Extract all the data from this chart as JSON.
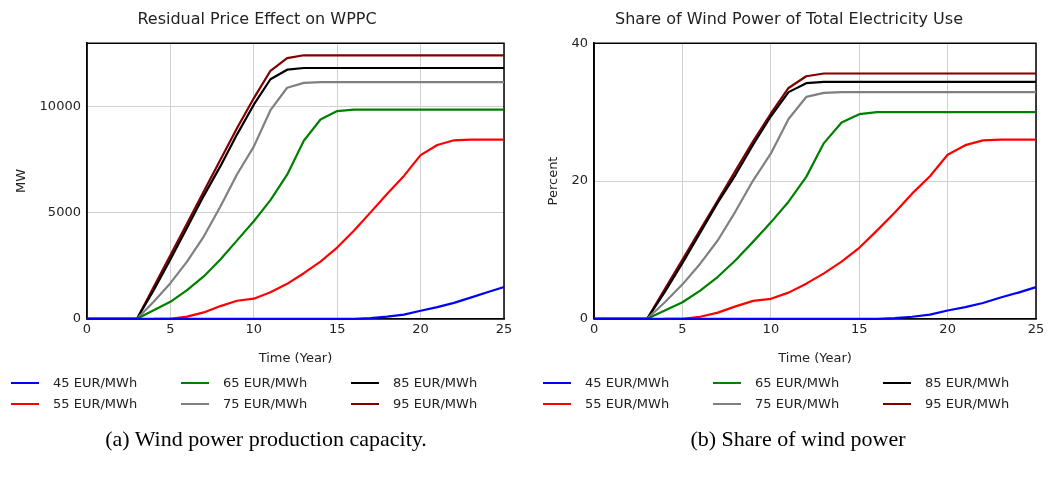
{
  "chart_data": [
    {
      "type": "line",
      "title": "Residual Price Effect on WPPC",
      "xlabel": "Time (Year)",
      "ylabel": "MW",
      "x": [
        0,
        3,
        4,
        5,
        6,
        7,
        8,
        9,
        10,
        11,
        12,
        13,
        14,
        15,
        16,
        17,
        18,
        19,
        20,
        21,
        22,
        23,
        24,
        25
      ],
      "xlim": [
        0,
        25
      ],
      "xticks": [
        0,
        5,
        10,
        15,
        20,
        25
      ],
      "ylim": [
        0,
        13000
      ],
      "yticks": [
        0,
        5000,
        10000
      ],
      "grid": true,
      "legend": "bottom",
      "marker": "none",
      "annotations": [
        "(a) Wind power production capacity."
      ],
      "series": [
        {
          "name": "45 EUR/MWh",
          "color": "#0000ff",
          "values": [
            0,
            0,
            0,
            0,
            0,
            0,
            0,
            0,
            0,
            0,
            0,
            0,
            0,
            0,
            0,
            30,
            100,
            200,
            380,
            550,
            750,
            1000,
            1250,
            1500
          ]
        },
        {
          "name": "55 EUR/MWh",
          "color": "#ff0000",
          "values": [
            null,
            null,
            0,
            0,
            100,
            300,
            600,
            850,
            950,
            1250,
            1650,
            2150,
            2700,
            3360,
            4150,
            5020,
            5900,
            6740,
            7720,
            8200,
            8420,
            8450,
            8450,
            8450
          ]
        },
        {
          "name": "65 EUR/MWh",
          "color": "#008000",
          "values": [
            0,
            0,
            400,
            800,
            1350,
            2000,
            2800,
            3700,
            4600,
            5600,
            6800,
            8400,
            9400,
            9800,
            9870,
            9870,
            9870,
            9870,
            9870,
            9870,
            9870,
            9870,
            9870,
            9870
          ]
        },
        {
          "name": "75 EUR/MWh",
          "color": "#808080",
          "values": [
            0,
            0,
            800,
            1680,
            2700,
            3880,
            5300,
            6820,
            8120,
            9840,
            10900,
            11130,
            11160,
            11160,
            11160,
            11160,
            11160,
            11160,
            11160,
            11160,
            11160,
            11160,
            11160,
            11160
          ]
        },
        {
          "name": "85 EUR/MWh",
          "color": "#000000",
          "values": [
            0,
            0,
            1350,
            2800,
            4300,
            5800,
            7200,
            8700,
            10100,
            11300,
            11750,
            11830,
            11830,
            11830,
            11830,
            11830,
            11830,
            11830,
            11830,
            11830,
            11830,
            11830,
            11830,
            11830
          ]
        },
        {
          "name": "95 EUR/MWh",
          "color": "#800000",
          "values": [
            0,
            0,
            1500,
            3000,
            4500,
            6000,
            7500,
            9000,
            10400,
            11700,
            12300,
            12430,
            12430,
            12430,
            12430,
            12430,
            12430,
            12430,
            12430,
            12430,
            12430,
            12430,
            12430,
            12430
          ]
        }
      ]
    },
    {
      "type": "line",
      "title": "Share of Wind Power of Total Electricity Use",
      "xlabel": "Time (Year)",
      "ylabel": "Percent",
      "x": [
        0,
        3,
        4,
        5,
        6,
        7,
        8,
        9,
        10,
        11,
        12,
        13,
        14,
        15,
        16,
        17,
        18,
        19,
        20,
        21,
        22,
        23,
        24,
        25
      ],
      "xlim": [
        0,
        25
      ],
      "xticks": [
        0,
        5,
        10,
        15,
        20,
        25
      ],
      "ylim": [
        0,
        40
      ],
      "yticks": [
        0,
        20,
        40
      ],
      "grid": true,
      "legend": "bottom",
      "marker": "none",
      "annotations": [
        "(b) Share of wind power"
      ],
      "series": [
        {
          "name": "45 EUR/MWh",
          "color": "#0000ff",
          "values": [
            0,
            0,
            0,
            0,
            0,
            0,
            0,
            0,
            0,
            0,
            0,
            0,
            0,
            0,
            0,
            0.1,
            0.3,
            0.6,
            1.2,
            1.7,
            2.3,
            3.1,
            3.8,
            4.6
          ]
        },
        {
          "name": "55 EUR/MWh",
          "color": "#ff0000",
          "values": [
            null,
            null,
            0,
            0,
            0.3,
            0.9,
            1.8,
            2.6,
            2.9,
            3.8,
            5.1,
            6.6,
            8.3,
            10.3,
            12.8,
            15.4,
            18.2,
            20.7,
            23.8,
            25.2,
            25.9,
            26,
            26,
            26
          ]
        },
        {
          "name": "65 EUR/MWh",
          "color": "#008000",
          "values": [
            0,
            0,
            1.2,
            2.4,
            4.1,
            6.1,
            8.5,
            11.2,
            14,
            17,
            20.6,
            25.5,
            28.5,
            29.7,
            30,
            30,
            30,
            30,
            30,
            30,
            30,
            30,
            30,
            30
          ]
        },
        {
          "name": "75 EUR/MWh",
          "color": "#808080",
          "values": [
            0,
            0,
            2.4,
            5,
            8,
            11.4,
            15.6,
            20.1,
            24,
            29,
            32.2,
            32.8,
            32.9,
            32.9,
            32.9,
            32.9,
            32.9,
            32.9,
            32.9,
            32.9,
            32.9,
            32.9,
            32.9,
            32.9
          ]
        },
        {
          "name": "85 EUR/MWh",
          "color": "#000000",
          "values": [
            0,
            0,
            3.9,
            8.1,
            12.5,
            16.9,
            20.9,
            25.3,
            29.4,
            32.9,
            34.2,
            34.4,
            34.4,
            34.4,
            34.4,
            34.4,
            34.4,
            34.4,
            34.4,
            34.4,
            34.4,
            34.4,
            34.4,
            34.4
          ]
        },
        {
          "name": "95 EUR/MWh",
          "color": "#800000",
          "values": [
            0,
            0,
            4.3,
            8.6,
            12.9,
            17.2,
            21.5,
            25.8,
            29.8,
            33.5,
            35.2,
            35.6,
            35.6,
            35.6,
            35.6,
            35.6,
            35.6,
            35.6,
            35.6,
            35.6,
            35.6,
            35.6,
            35.6,
            35.6
          ]
        }
      ]
    }
  ]
}
